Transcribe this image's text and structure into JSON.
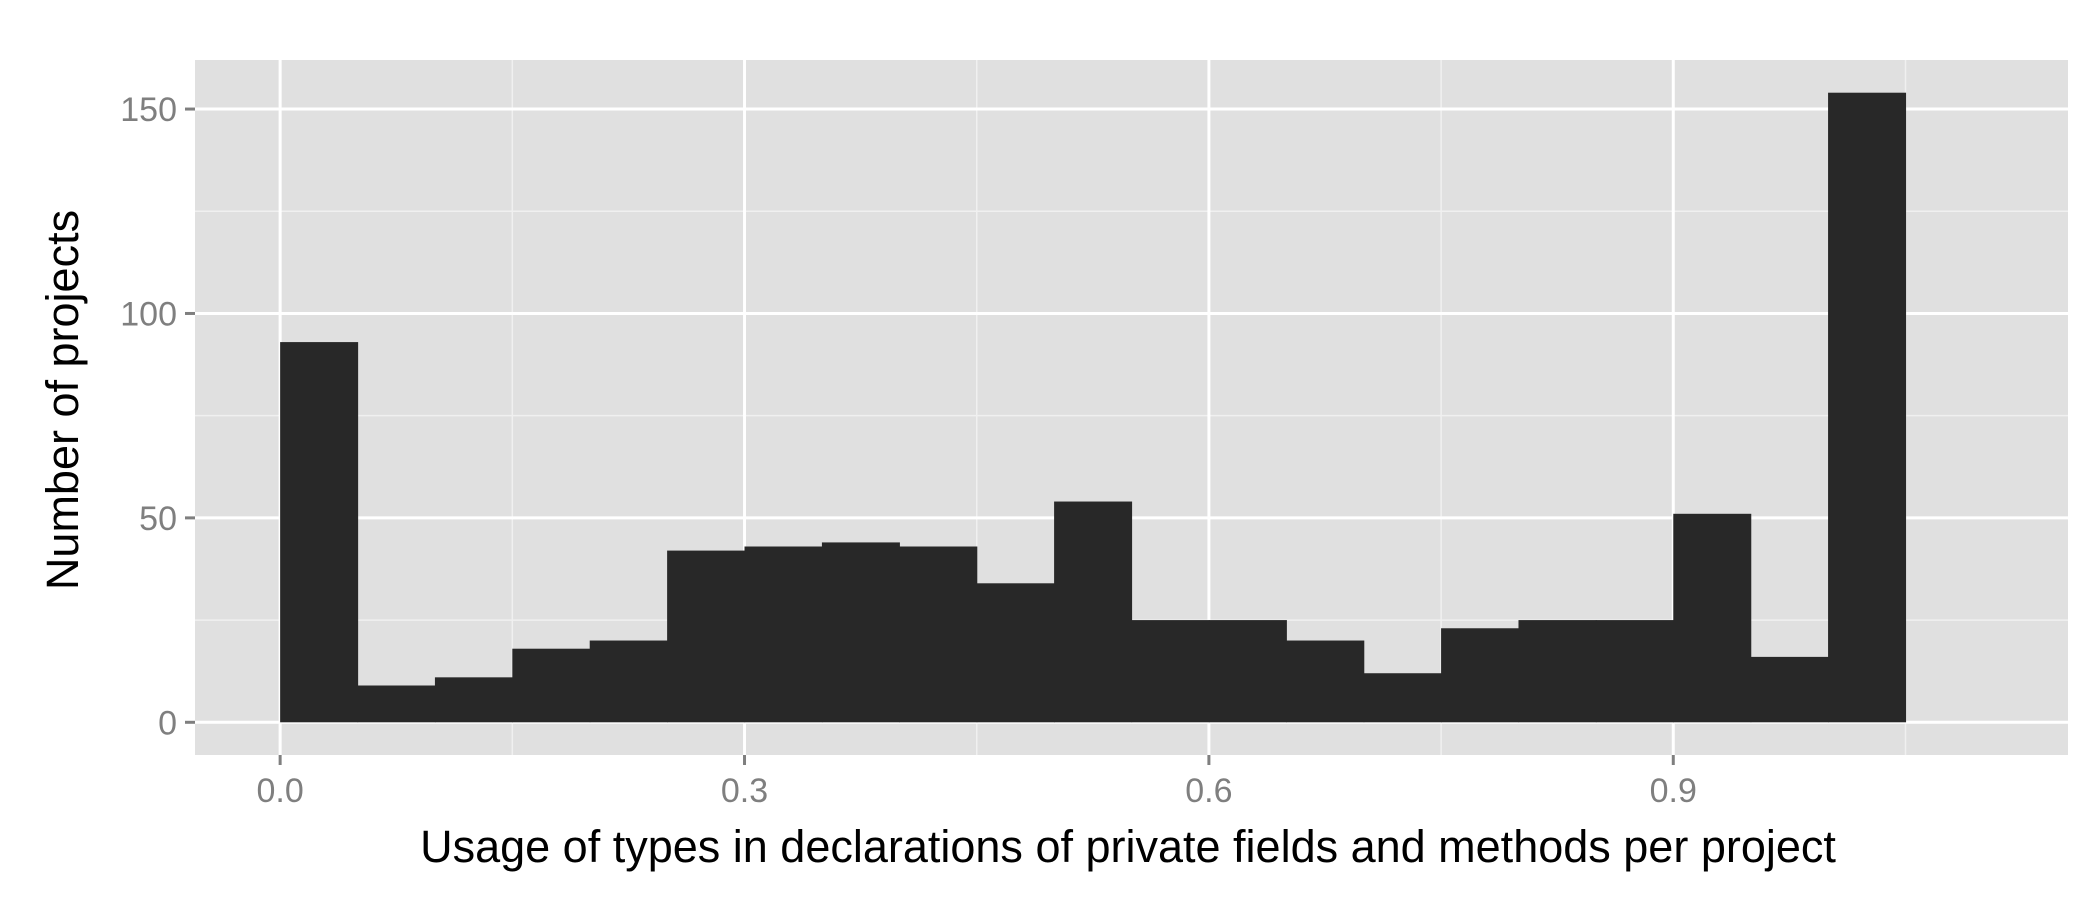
{
  "chart_data": {
    "type": "bar",
    "title": "",
    "xlabel": "Usage of types in declarations of private fields and methods per project",
    "ylabel": "Number of projects",
    "bin_width": 0.05,
    "bins": [
      {
        "x0": 0.0,
        "x1": 0.05,
        "count": 93
      },
      {
        "x0": 0.05,
        "x1": 0.1,
        "count": 9
      },
      {
        "x0": 0.1,
        "x1": 0.15,
        "count": 11
      },
      {
        "x0": 0.15,
        "x1": 0.2,
        "count": 18
      },
      {
        "x0": 0.2,
        "x1": 0.25,
        "count": 20
      },
      {
        "x0": 0.25,
        "x1": 0.3,
        "count": 42
      },
      {
        "x0": 0.3,
        "x1": 0.35,
        "count": 43
      },
      {
        "x0": 0.35,
        "x1": 0.4,
        "count": 44
      },
      {
        "x0": 0.4,
        "x1": 0.45,
        "count": 43
      },
      {
        "x0": 0.45,
        "x1": 0.5,
        "count": 34
      },
      {
        "x0": 0.5,
        "x1": 0.55,
        "count": 54
      },
      {
        "x0": 0.55,
        "x1": 0.6,
        "count": 25
      },
      {
        "x0": 0.6,
        "x1": 0.65,
        "count": 25
      },
      {
        "x0": 0.65,
        "x1": 0.7,
        "count": 20
      },
      {
        "x0": 0.7,
        "x1": 0.75,
        "count": 12
      },
      {
        "x0": 0.75,
        "x1": 0.8,
        "count": 23
      },
      {
        "x0": 0.8,
        "x1": 0.85,
        "count": 25
      },
      {
        "x0": 0.85,
        "x1": 0.9,
        "count": 25
      },
      {
        "x0": 0.9,
        "x1": 0.95,
        "count": 51
      },
      {
        "x0": 0.95,
        "x1": 1.0,
        "count": 16
      },
      {
        "x0": 1.0,
        "x1": 1.05,
        "count": 154
      }
    ],
    "xlim": [
      -0.055,
      1.155
    ],
    "ylim": [
      -8,
      162
    ],
    "x_ticks": [
      0.0,
      0.3,
      0.6,
      0.9
    ],
    "x_tick_labels": [
      "0.0",
      "0.3",
      "0.6",
      "0.9"
    ],
    "x_minor_ticks": [
      0.15,
      0.45,
      0.75,
      1.05
    ],
    "y_ticks": [
      0,
      50,
      100,
      150
    ],
    "y_tick_labels": [
      "0",
      "50",
      "100",
      "150"
    ],
    "y_minor_ticks": [
      25,
      75,
      125
    ],
    "grid": true,
    "legend": "none",
    "colors": {
      "panel": "#e0e0e0",
      "grid_major": "#ffffff",
      "grid_minor": "#f0f0f0",
      "bar": "#282828",
      "tick": "#7f7f7f"
    }
  }
}
